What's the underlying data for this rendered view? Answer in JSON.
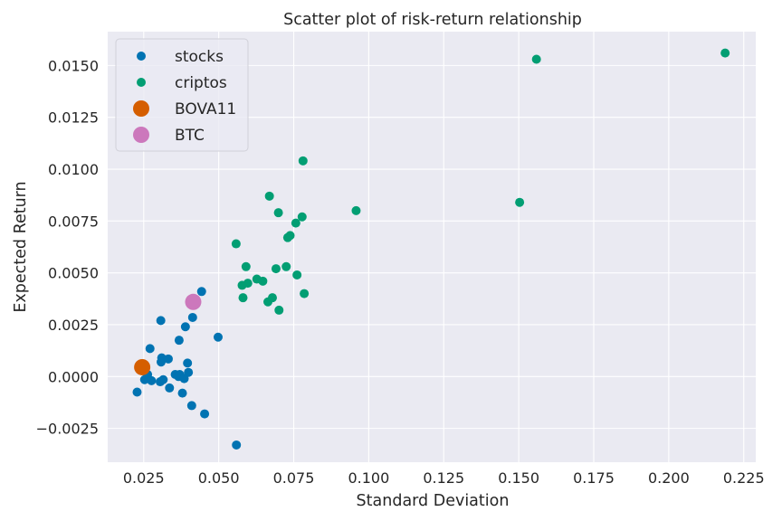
{
  "chart_data": {
    "type": "scatter",
    "title": "Scatter plot of risk-return relationship",
    "xlabel": "Standard Deviation",
    "ylabel": "Expected Return",
    "xlim": [
      0.013,
      0.229
    ],
    "ylim": [
      -0.00413,
      0.01663
    ],
    "grid": true,
    "legend": "top-left",
    "xticks": [
      0.025,
      0.05,
      0.075,
      0.1,
      0.125,
      0.15,
      0.175,
      0.2,
      0.225
    ],
    "xtick_labels": [
      "0.025",
      "0.050",
      "0.075",
      "0.100",
      "0.125",
      "0.150",
      "0.175",
      "0.200",
      "0.225"
    ],
    "yticks": [
      -0.0025,
      0.0,
      0.0025,
      0.005,
      0.0075,
      0.01,
      0.0125,
      0.015
    ],
    "ytick_labels": [
      "−0.0025",
      "0.0000",
      "0.0025",
      "0.0050",
      "0.0075",
      "0.0100",
      "0.0125",
      "0.0150"
    ],
    "series": [
      {
        "name": "stocks",
        "color": "#0173b2",
        "marker": "small",
        "points": [
          [
            0.0228,
            -0.00075
          ],
          [
            0.0253,
            -0.00015
          ],
          [
            0.0263,
            0.0001
          ],
          [
            0.0271,
            0.00135
          ],
          [
            0.0276,
            -0.0002
          ],
          [
            0.0305,
            -0.00025
          ],
          [
            0.0307,
            0.0027
          ],
          [
            0.031,
            0.0009
          ],
          [
            0.0308,
            0.0007
          ],
          [
            0.0315,
            -0.00015
          ],
          [
            0.0332,
            0.00085
          ],
          [
            0.0336,
            -0.00055
          ],
          [
            0.0355,
            0.0001
          ],
          [
            0.0366,
            0.0
          ],
          [
            0.0368,
            0.00175
          ],
          [
            0.037,
            0.0001
          ],
          [
            0.0379,
            -0.0008
          ],
          [
            0.0385,
            -0.0001
          ],
          [
            0.0389,
            0.0024
          ],
          [
            0.0396,
            0.00065
          ],
          [
            0.0399,
            0.0002
          ],
          [
            0.041,
            -0.0014
          ],
          [
            0.0413,
            0.00285
          ],
          [
            0.0443,
            0.0041
          ],
          [
            0.0453,
            -0.0018
          ],
          [
            0.0498,
            0.0019
          ],
          [
            0.0559,
            -0.0033
          ]
        ]
      },
      {
        "name": "criptos",
        "color": "#029e73",
        "marker": "small",
        "points": [
          [
            0.0558,
            0.0064
          ],
          [
            0.0578,
            0.0044
          ],
          [
            0.0581,
            0.0038
          ],
          [
            0.0591,
            0.0053
          ],
          [
            0.0597,
            0.0045
          ],
          [
            0.0627,
            0.0047
          ],
          [
            0.0647,
            0.0046
          ],
          [
            0.0664,
            0.0036
          ],
          [
            0.0669,
            0.0087
          ],
          [
            0.0679,
            0.0038
          ],
          [
            0.0691,
            0.0052
          ],
          [
            0.0699,
            0.0079
          ],
          [
            0.0701,
            0.0032
          ],
          [
            0.0725,
            0.0053
          ],
          [
            0.073,
            0.0067
          ],
          [
            0.0738,
            0.0068
          ],
          [
            0.0757,
            0.0074
          ],
          [
            0.0761,
            0.0049
          ],
          [
            0.0778,
            0.0077
          ],
          [
            0.0781,
            0.0104
          ],
          [
            0.0785,
            0.004
          ],
          [
            0.0958,
            0.008
          ],
          [
            0.1503,
            0.0084
          ],
          [
            0.1559,
            0.0153
          ],
          [
            0.2188,
            0.0156
          ]
        ]
      },
      {
        "name": "BOVA11",
        "color": "#d55e00",
        "marker": "large",
        "points": [
          [
            0.0245,
            0.00045
          ]
        ]
      },
      {
        "name": "BTC",
        "color": "#cc78bc",
        "marker": "large",
        "points": [
          [
            0.0415,
            0.0036
          ]
        ]
      }
    ]
  }
}
